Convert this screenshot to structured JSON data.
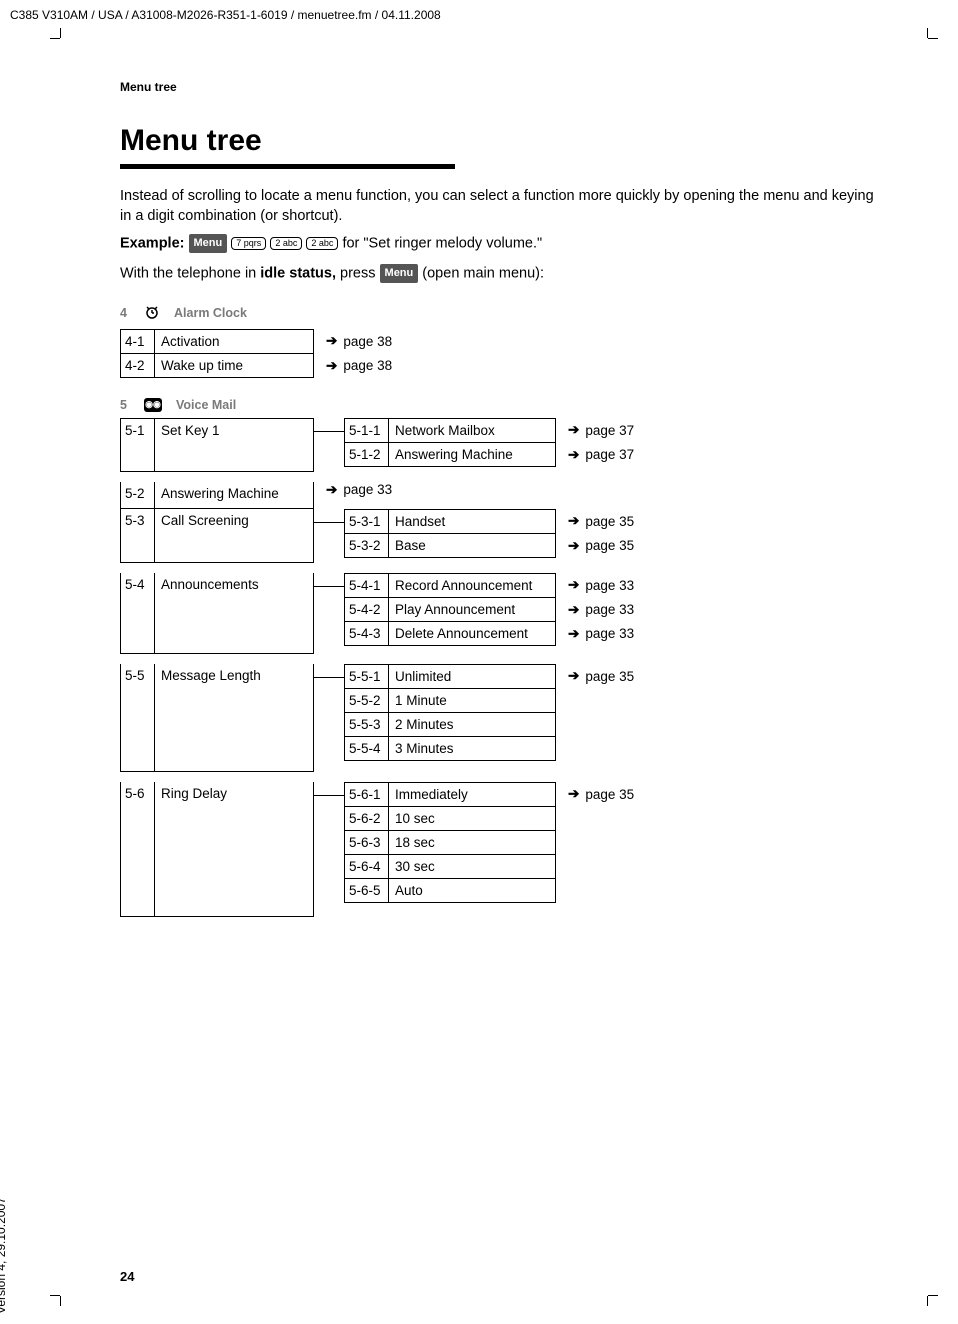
{
  "doc_header": "C385 V310AM / USA / A31008-M2026-R351-1-6019 / menuetree.fm / 04.11.2008",
  "side_text": "Version 4, 29.10.2007",
  "page_number": "24",
  "running_header": "Menu tree",
  "title": "Menu tree",
  "intro": {
    "para1": "Instead of scrolling to locate a menu function, you can select a function more quickly by opening the menu and keying in a digit combination (or shortcut).",
    "example_label": "Example:",
    "menu_badge": "Menu",
    "key1": "7 pqrs",
    "key2": "2 abc",
    "key3": "2 abc",
    "example_tail": " for \"Set ringer melody volume.\"",
    "para2a": "With the telephone in ",
    "para2b": "idle status,",
    "para2c": " press ",
    "para2d": " (open main menu):"
  },
  "section4": {
    "num": "4",
    "title": "Alarm Clock",
    "rows": [
      {
        "num": "4-1",
        "label": "Activation",
        "ref": "page 38"
      },
      {
        "num": "4-2",
        "label": "Wake up time",
        "ref": "page 38"
      }
    ]
  },
  "section5": {
    "num": "5",
    "title": "Voice Mail",
    "icon_glyph": "◉◉",
    "groups": [
      {
        "num": "5-1",
        "label": "Set Key 1",
        "subs": [
          {
            "num": "5-1-1",
            "label": "Network Mailbox",
            "ref": "page 37"
          },
          {
            "num": "5-1-2",
            "label": "Answering  Machine",
            "ref": "page 37"
          }
        ]
      },
      {
        "num": "5-2",
        "label": "Answering  Machine",
        "ref": "page 33"
      },
      {
        "num": "5-3",
        "label": "Call Screening",
        "subs": [
          {
            "num": "5-3-1",
            "label": "Handset",
            "ref": "page 35"
          },
          {
            "num": "5-3-2",
            "label": "Base",
            "ref": "page 35"
          }
        ]
      },
      {
        "num": "5-4",
        "label": "Announcements",
        "subs": [
          {
            "num": "5-4-1",
            "label": "Record Announcement",
            "ref": "page 33"
          },
          {
            "num": "5-4-2",
            "label": "Play Announcement",
            "ref": "page 33"
          },
          {
            "num": "5-4-3",
            "label": "Delete Announcement",
            "ref": "page 33"
          }
        ]
      },
      {
        "num": "5-5",
        "label": "Message Length",
        "subs": [
          {
            "num": "5-5-1",
            "label": "Unlimited",
            "ref": "page 35"
          },
          {
            "num": "5-5-2",
            "label": "1 Minute"
          },
          {
            "num": "5-5-3",
            "label": "2 Minutes"
          },
          {
            "num": "5-5-4",
            "label": "3 Minutes"
          }
        ]
      },
      {
        "num": "5-6",
        "label": "Ring Delay",
        "subs": [
          {
            "num": "5-6-1",
            "label": "Immediately",
            "ref": "page 35"
          },
          {
            "num": "5-6-2",
            "label": "10 sec"
          },
          {
            "num": "5-6-3",
            "label": "18 sec"
          },
          {
            "num": "5-6-4",
            "label": "30 sec"
          },
          {
            "num": "5-6-5",
            "label": "Auto"
          }
        ]
      }
    ]
  }
}
